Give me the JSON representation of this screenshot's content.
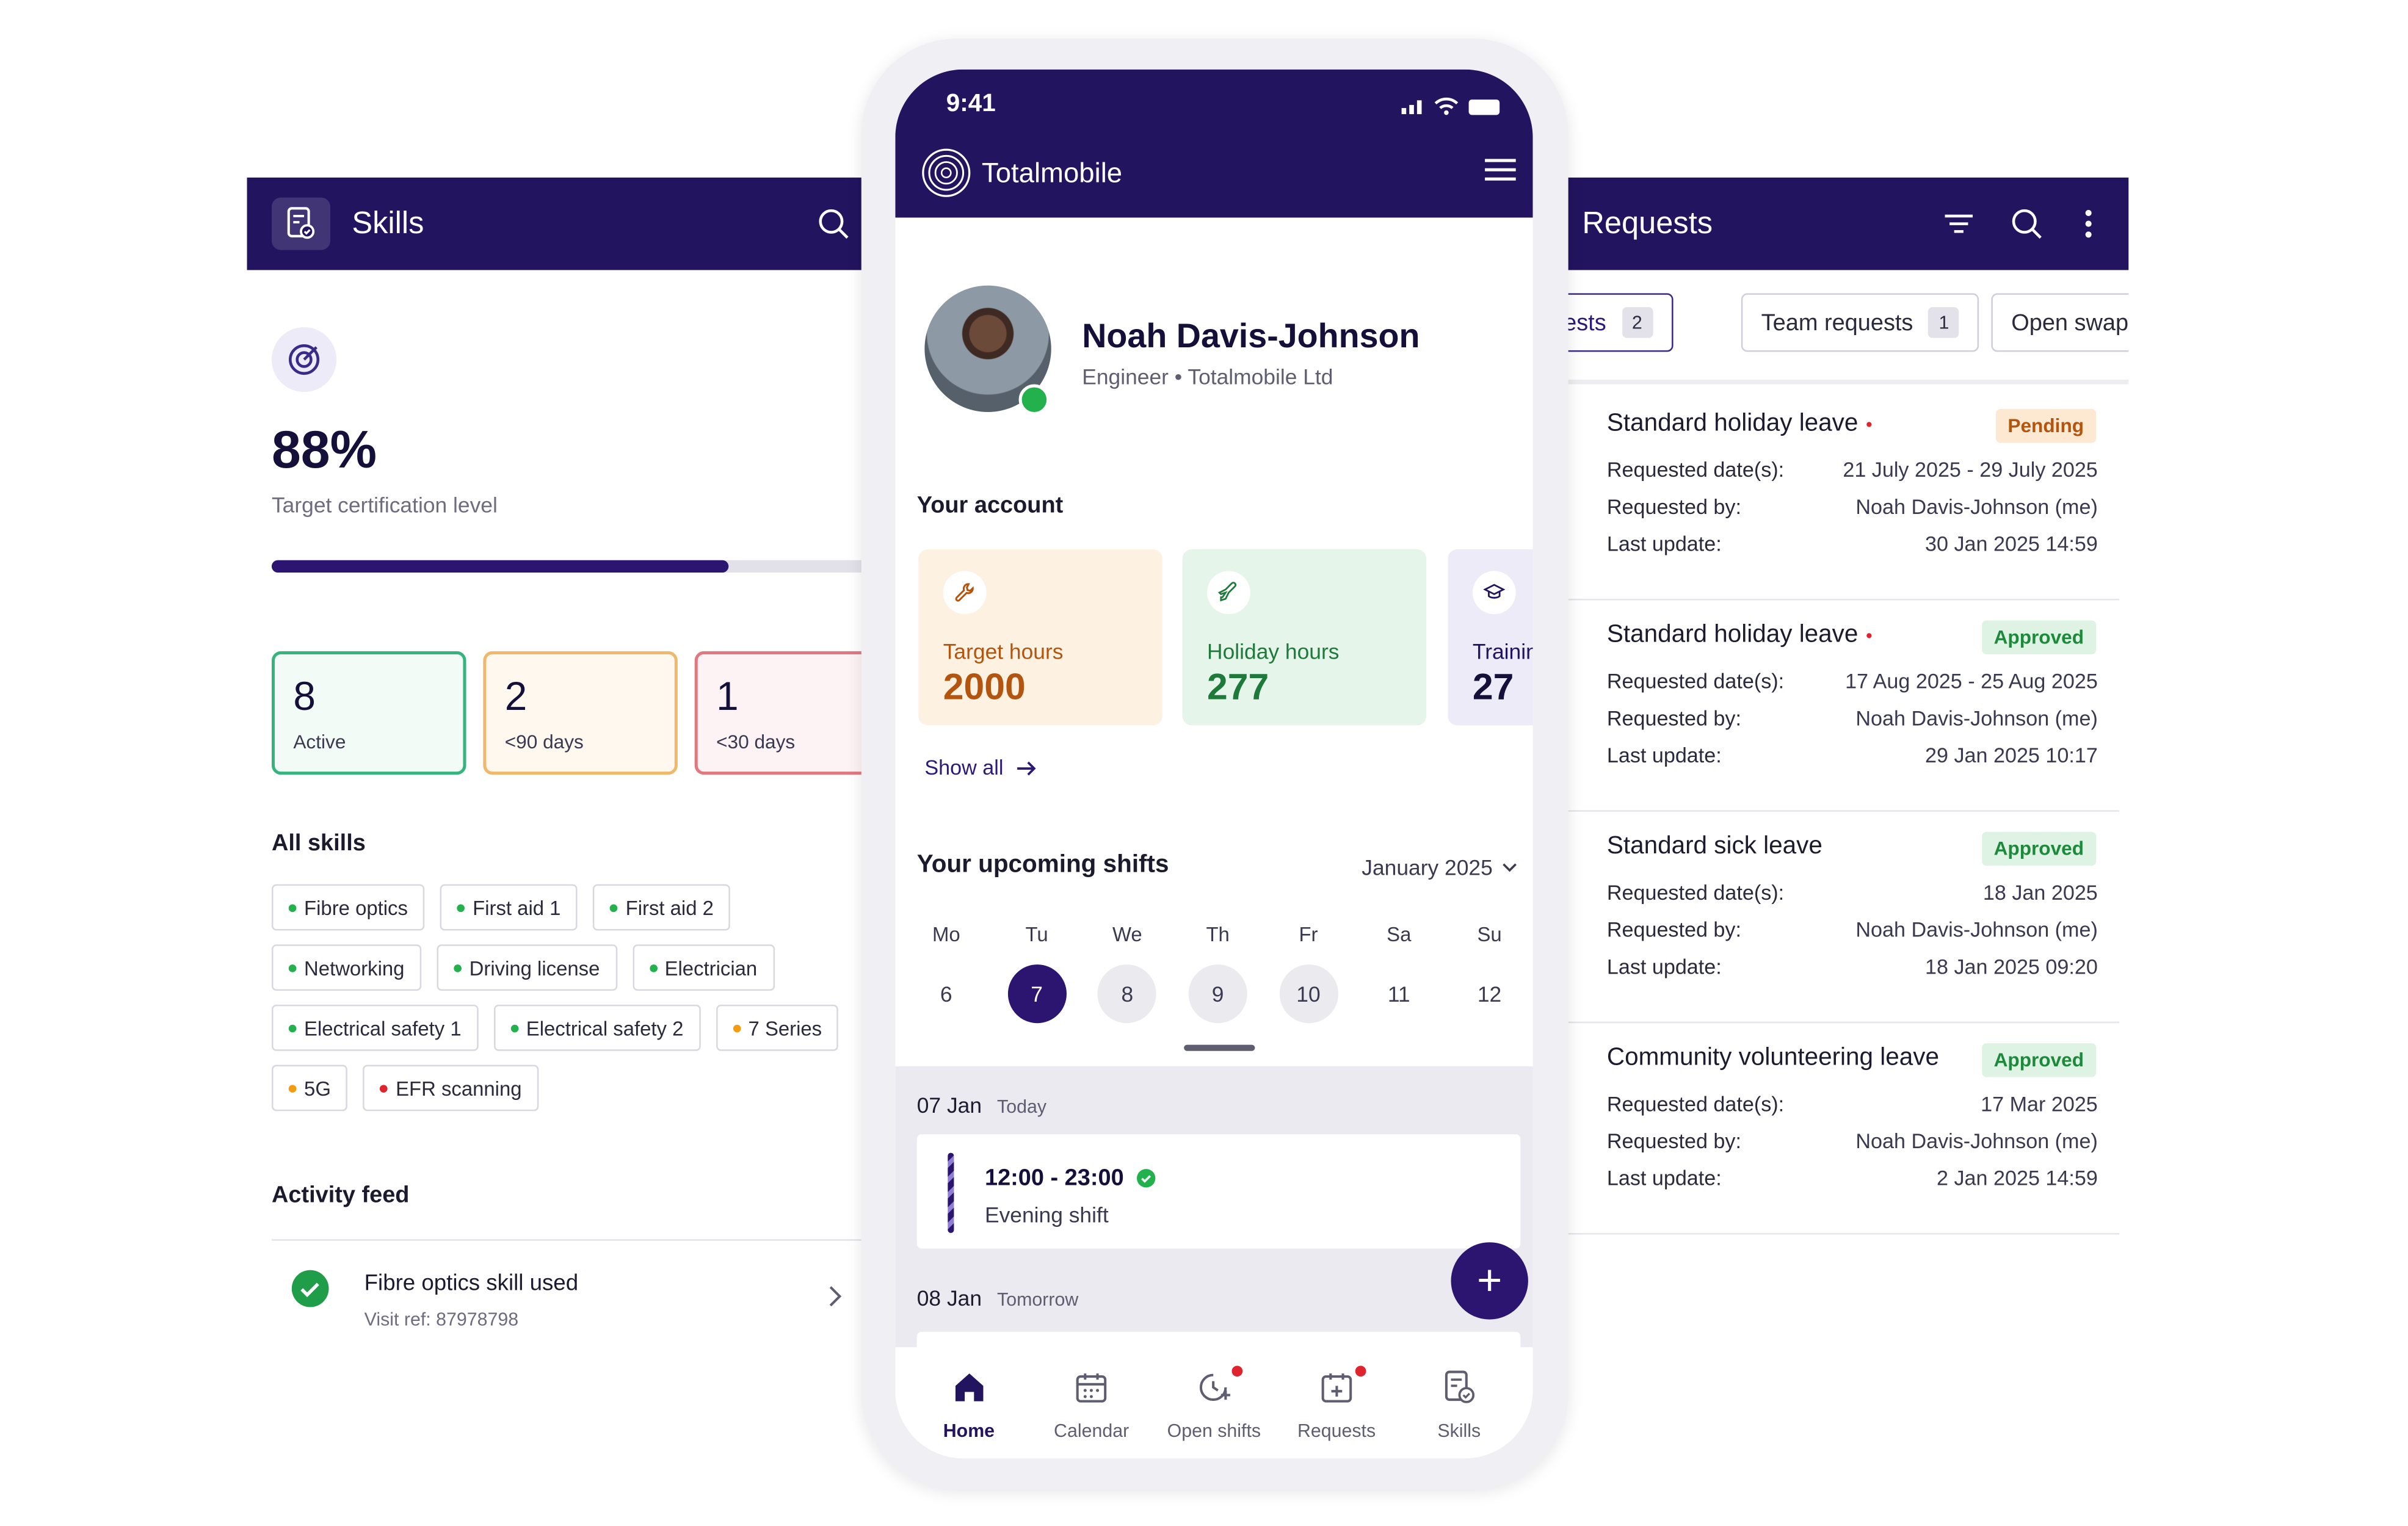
{
  "colors": {
    "brand": "#23145f",
    "accent": "#2c1570",
    "active_green": "#22b14c",
    "pending": "#b4550f",
    "approved": "#1d8a3b"
  },
  "skills": {
    "title": "Skills",
    "percent": "88%",
    "percent_label": "Target certification level",
    "progress_fraction": 0.88,
    "stats": [
      {
        "value": "8",
        "label": "Active",
        "border": "#36b37e",
        "bg": "#f3fbf6"
      },
      {
        "value": "2",
        "label": "<90 days",
        "border": "#f0b86a",
        "bg": "#fff8ee"
      },
      {
        "value": "1",
        "label": "<30 days",
        "border": "#e2787f",
        "bg": "#fdf3f4"
      }
    ],
    "all_skills_heading": "All skills",
    "chips": [
      {
        "label": "Fibre optics",
        "dot": "#22b14c"
      },
      {
        "label": "First aid 1",
        "dot": "#22b14c"
      },
      {
        "label": "First aid 2",
        "dot": "#22b14c"
      },
      {
        "label": "Networking",
        "dot": "#22b14c"
      },
      {
        "label": "Driving license",
        "dot": "#22b14c"
      },
      {
        "label": "Electrician",
        "dot": "#22b14c"
      },
      {
        "label": "Electrical safety 1",
        "dot": "#22b14c"
      },
      {
        "label": "Electrical safety 2",
        "dot": "#22b14c"
      },
      {
        "label": "7 Series",
        "dot": "#f39c12"
      },
      {
        "label": "5G",
        "dot": "#f39c12"
      },
      {
        "label": "EFR scanning",
        "dot": "#e0242e"
      }
    ],
    "activity_heading": "Activity feed",
    "feed": {
      "title": "Fibre optics skill used",
      "subtitle": "Visit ref: 87978798"
    }
  },
  "requests": {
    "title": "Requests",
    "tabs": [
      {
        "label": "requests",
        "count": "2"
      },
      {
        "label": "Team requests",
        "count": "1"
      },
      {
        "label": "Open swaps",
        "count": ""
      }
    ],
    "field_labels": {
      "dates": "Requested date(s):",
      "by": "Requested by:",
      "update": "Last update:"
    },
    "items": [
      {
        "title": "Standard holiday leave",
        "dot": "•",
        "status": "Pending",
        "status_type": "pending",
        "edge": "#4a3fc2",
        "dates": "21 July 2025 - 29 July 2025",
        "by": "Noah Davis-Johnson (me)",
        "update": "30 Jan 2025 14:59"
      },
      {
        "title": "Standard holiday leave",
        "dot": "•",
        "status": "Approved",
        "status_type": "approved",
        "edge": "#4a3fc2",
        "dates": "17 Aug 2025 - 25 Aug 2025",
        "by": "Noah Davis-Johnson (me)",
        "update": "29 Jan 2025 10:17"
      },
      {
        "title": "Standard sick leave",
        "dot": "",
        "status": "Approved",
        "status_type": "approved",
        "edge": "#e0242e",
        "dates": "18 Jan 2025",
        "by": "Noah Davis-Johnson (me)",
        "update": "18 Jan 2025 09:20"
      },
      {
        "title": "Community volunteering leave",
        "dot": "",
        "status": "Approved",
        "status_type": "approved",
        "edge": "#22b14c",
        "dates": "17 Mar 2025",
        "by": "Noah Davis-Johnson (me)",
        "update": "2 Jan 2025 14:59"
      }
    ]
  },
  "phone": {
    "time": "9:41",
    "brand": "Totalmobile",
    "profile": {
      "name": "Noah Davis-Johnson",
      "role": "Engineer • Totalmobile Ltd"
    },
    "account_heading": "Your account",
    "account_cards": [
      {
        "label": "Target hours",
        "value": "2000",
        "icon": "wrench-icon",
        "bg": "#fdf1e2",
        "fg": "#b4550f"
      },
      {
        "label": "Holiday hours",
        "value": "277",
        "icon": "plane-icon",
        "bg": "#e5f5ea",
        "fg": "#1d7a3a"
      },
      {
        "label": "Training",
        "value": "27",
        "icon": "graduation-cap-icon",
        "bg": "#ecebf7",
        "fg": "#23145f"
      }
    ],
    "show_all": "Show all",
    "shifts_heading": "Your upcoming shifts",
    "month": "January 2025",
    "weekdays": [
      "Mo",
      "Tu",
      "We",
      "Th",
      "Fr",
      "Sa",
      "Su"
    ],
    "days": [
      "6",
      "7",
      "8",
      "9",
      "10",
      "11",
      "12"
    ],
    "day_states": [
      "plain",
      "selected",
      "shift",
      "shift",
      "shift",
      "plain",
      "plain"
    ],
    "shift_day1": {
      "date": "07 Jan",
      "rel": "Today"
    },
    "shift": {
      "time": "12:00 - 23:00",
      "name": "Evening shift"
    },
    "shift_day2": {
      "date": "08 Jan",
      "rel": "Tomorrow"
    },
    "nav": [
      {
        "label": "Home",
        "icon": "home-icon",
        "active": true,
        "badge": false
      },
      {
        "label": "Calendar",
        "icon": "calendar-icon",
        "active": false,
        "badge": false
      },
      {
        "label": "Open shifts",
        "icon": "open-shifts-icon",
        "active": false,
        "badge": true
      },
      {
        "label": "Requests",
        "icon": "requests-icon",
        "active": false,
        "badge": true
      },
      {
        "label": "Skills",
        "icon": "skills-icon",
        "active": false,
        "badge": false
      }
    ]
  }
}
